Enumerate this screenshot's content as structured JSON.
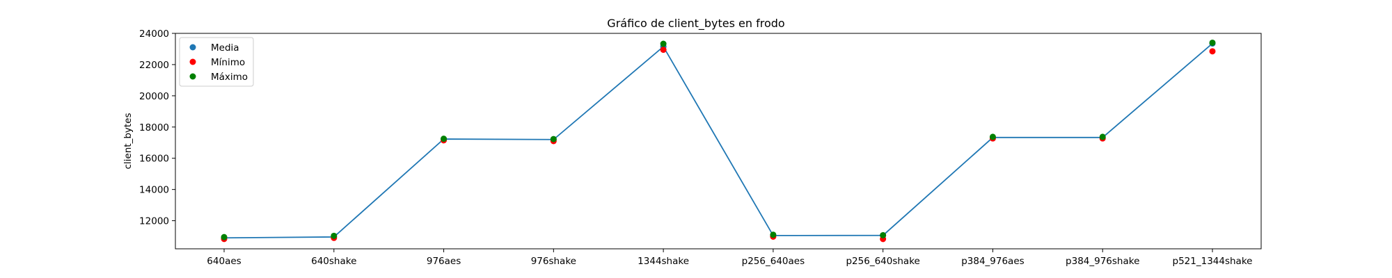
{
  "chart_data": {
    "type": "line",
    "title": "Gráfico de client_bytes en frodo",
    "xlabel": "",
    "ylabel": "client_bytes",
    "ylim": [
      10200,
      24000
    ],
    "yticks": [
      12000,
      14000,
      16000,
      18000,
      20000,
      22000,
      24000
    ],
    "grid": false,
    "legend_position": "top-left",
    "categories": [
      "640aes",
      "640shake",
      "976aes",
      "976shake",
      "1344shake",
      "p256_640aes",
      "p256_640shake",
      "p384_976aes",
      "p384_976shake",
      "p521_1344shake"
    ],
    "series": [
      {
        "name": "Media",
        "kind": "line+scatter",
        "color": "#1f77b4",
        "values": [
          10900,
          10960,
          17230,
          17200,
          23150,
          11050,
          11060,
          17330,
          17330,
          23350
        ]
      },
      {
        "name": "Mínimo",
        "kind": "scatter",
        "color": "#ff0000",
        "values": [
          10830,
          10900,
          17150,
          17100,
          22950,
          10980,
          10830,
          17270,
          17270,
          22850
        ]
      },
      {
        "name": "Máximo",
        "kind": "scatter",
        "color": "#008000",
        "values": [
          10950,
          11030,
          17250,
          17230,
          23330,
          11100,
          11070,
          17370,
          17370,
          23400
        ]
      }
    ]
  }
}
